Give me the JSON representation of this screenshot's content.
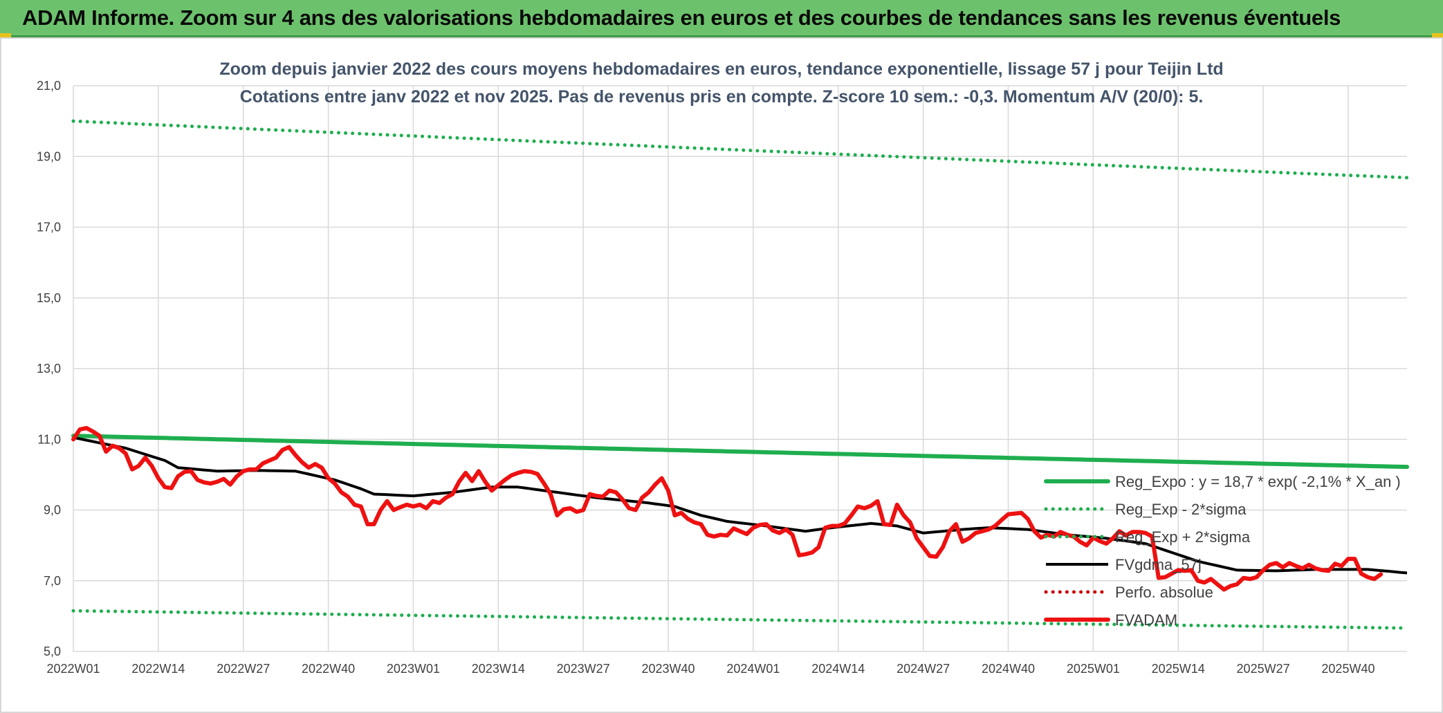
{
  "header": {
    "title": "ADAM Informe. Zoom sur 4 ans des valorisations hebdomadaires en euros et des courbes de tendances sans les revenus éventuels"
  },
  "colors": {
    "banner": "#6cc26c",
    "trend": "#1fae4f",
    "band": "#1fae4f",
    "smooth": "#000000",
    "price": "#ee1111",
    "perf": "#cc0000"
  },
  "chart_data": {
    "type": "line",
    "title": "Zoom depuis janvier 2022 des cours moyens hebdomadaires en euros, tendance exponentielle, lissage 57 j pour Teijin Ltd",
    "subtitle": "Cotations entre janv 2022 et nov 2025. Pas de revenus pris en compte. Z-score 10 sem.: -0,3. Momentum A/V (20/0): 5.",
    "x_tick_labels": [
      "2022W01",
      "2022W14",
      "2022W27",
      "2022W40",
      "2023W01",
      "2023W14",
      "2023W27",
      "2023W40",
      "2024W01",
      "2024W14",
      "2024W27",
      "2024W40",
      "2025W01",
      "2025W14",
      "2025W27",
      "2025W40"
    ],
    "x_tick_index": [
      0,
      13,
      26,
      39,
      52,
      65,
      78,
      91,
      104,
      117,
      130,
      143,
      156,
      169,
      182,
      195
    ],
    "x_count": 205,
    "y_tick_labels": [
      "5,0",
      "7,0",
      "9,0",
      "11,0",
      "13,0",
      "15,0",
      "17,0",
      "19,0",
      "21,0"
    ],
    "ylim": [
      5,
      21
    ],
    "grid": true,
    "legend_position": "bottom-right",
    "series": [
      {
        "name": "Reg_Expo : y = 18,7 * exp( -2,1% *  X_an )",
        "style": "solid-thick",
        "color": "#1fae4f",
        "start": 11.1,
        "end": 10.22
      },
      {
        "name": "Reg_Exp - 2*sigma",
        "style": "dotted",
        "color": "#1fae4f",
        "start": 6.15,
        "end": 5.66
      },
      {
        "name": "Reg_Exp + 2*sigma",
        "style": "dotted",
        "color": "#1fae4f",
        "start": 20.0,
        "end": 18.4
      },
      {
        "name": "FVgdma_57j",
        "style": "solid",
        "color": "#000000",
        "anchors": [
          [
            0,
            11.05
          ],
          [
            8,
            10.75
          ],
          [
            14,
            10.4
          ],
          [
            16,
            10.2
          ],
          [
            22,
            10.1
          ],
          [
            28,
            10.12
          ],
          [
            34,
            10.1
          ],
          [
            40,
            9.85
          ],
          [
            44,
            9.6
          ],
          [
            46,
            9.45
          ],
          [
            52,
            9.4
          ],
          [
            58,
            9.5
          ],
          [
            64,
            9.65
          ],
          [
            68,
            9.65
          ],
          [
            74,
            9.5
          ],
          [
            80,
            9.35
          ],
          [
            88,
            9.2
          ],
          [
            92,
            9.1
          ],
          [
            96,
            8.85
          ],
          [
            100,
            8.68
          ],
          [
            106,
            8.55
          ],
          [
            112,
            8.4
          ],
          [
            116,
            8.5
          ],
          [
            122,
            8.62
          ],
          [
            126,
            8.55
          ],
          [
            130,
            8.35
          ],
          [
            136,
            8.45
          ],
          [
            140,
            8.5
          ],
          [
            146,
            8.45
          ],
          [
            152,
            8.3
          ],
          [
            158,
            8.2
          ],
          [
            164,
            8.05
          ],
          [
            168,
            7.8
          ],
          [
            172,
            7.55
          ],
          [
            178,
            7.3
          ],
          [
            184,
            7.28
          ],
          [
            190,
            7.32
          ],
          [
            198,
            7.32
          ],
          [
            204,
            7.22
          ]
        ]
      },
      {
        "name": "Perfo. absolue",
        "style": "dotted",
        "color": "#cc0000",
        "values": []
      },
      {
        "name": "FVADAM",
        "style": "solid-thick",
        "color": "#ee1111",
        "values": [
          11.0,
          11.28,
          11.32,
          11.22,
          11.1,
          10.65,
          10.82,
          10.75,
          10.6,
          10.15,
          10.25,
          10.48,
          10.25,
          9.9,
          9.65,
          9.62,
          9.95,
          10.08,
          10.1,
          9.85,
          9.78,
          9.75,
          9.8,
          9.88,
          9.72,
          9.95,
          10.1,
          10.15,
          10.15,
          10.32,
          10.4,
          10.48,
          10.7,
          10.78,
          10.55,
          10.35,
          10.2,
          10.3,
          10.2,
          9.9,
          9.75,
          9.5,
          9.38,
          9.15,
          9.1,
          8.6,
          8.6,
          9.0,
          9.25,
          9.0,
          9.08,
          9.15,
          9.1,
          9.15,
          9.05,
          9.25,
          9.2,
          9.35,
          9.45,
          9.8,
          10.05,
          9.82,
          10.1,
          9.8,
          9.55,
          9.7,
          9.85,
          9.98,
          10.05,
          10.1,
          10.08,
          10.02,
          9.75,
          9.45,
          8.85,
          9.02,
          9.05,
          8.95,
          9.0,
          9.45,
          9.4,
          9.38,
          9.55,
          9.5,
          9.3,
          9.05,
          9.0,
          9.35,
          9.5,
          9.72,
          9.9,
          9.55,
          8.85,
          8.92,
          8.75,
          8.65,
          8.6,
          8.3,
          8.25,
          8.3,
          8.28,
          8.48,
          8.4,
          8.32,
          8.5,
          8.58,
          8.6,
          8.42,
          8.35,
          8.45,
          8.3,
          7.72,
          7.75,
          7.8,
          7.95,
          8.5,
          8.55,
          8.55,
          8.62,
          8.85,
          9.1,
          9.05,
          9.12,
          9.25,
          8.6,
          8.58,
          9.15,
          8.85,
          8.65,
          8.2,
          7.95,
          7.7,
          7.68,
          7.95,
          8.4,
          8.6,
          8.1,
          8.2,
          8.35,
          8.4,
          8.45,
          8.55,
          8.72,
          8.88,
          8.9,
          8.92,
          8.75,
          8.4,
          8.22,
          8.3,
          8.25,
          8.38,
          8.3,
          8.25,
          8.1,
          8.0,
          8.22,
          8.12,
          8.05,
          8.2,
          8.4,
          8.28,
          8.38,
          8.38,
          8.35,
          8.25,
          7.08,
          7.1,
          7.2,
          7.3,
          7.28,
          7.3,
          7.0,
          6.95,
          7.05,
          6.9,
          6.75,
          6.85,
          6.9,
          7.08,
          7.05,
          7.1,
          7.3,
          7.45,
          7.5,
          7.38,
          7.5,
          7.42,
          7.35,
          7.45,
          7.35,
          7.3,
          7.28,
          7.48,
          7.42,
          7.62,
          7.62,
          7.2,
          7.1,
          7.05,
          7.18
        ]
      }
    ]
  }
}
